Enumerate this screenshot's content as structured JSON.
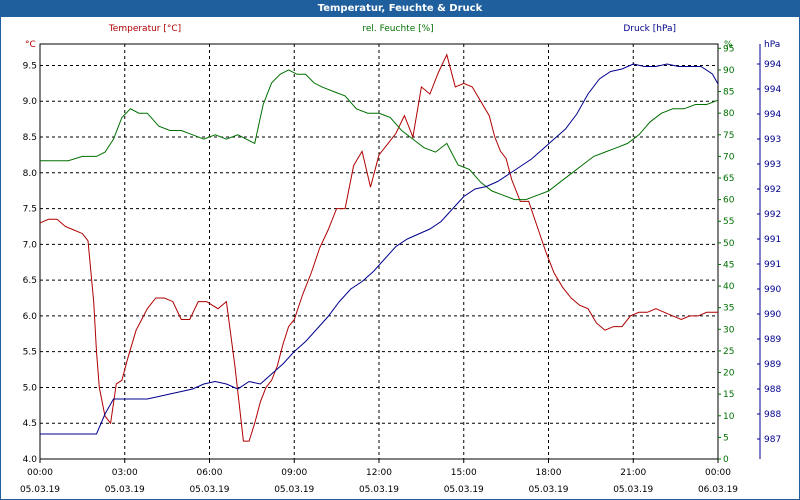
{
  "window": {
    "title": "Temperatur, Feuchte & Druck"
  },
  "chart_data": {
    "type": "line",
    "title": "Temperatur, Feuchte & Druck",
    "grid": true,
    "colors": {
      "temperature": "#b00000",
      "humidity": "#007000",
      "pressure": "#00008c",
      "title_bar": "#1f5f9e"
    },
    "x_ticks": [
      {
        "time": "00:00",
        "date": "05.03.19"
      },
      {
        "time": "03:00",
        "date": "05.03.19"
      },
      {
        "time": "06:00",
        "date": "05.03.19"
      },
      {
        "time": "09:00",
        "date": "05.03.19"
      },
      {
        "time": "12:00",
        "date": "05.03.19"
      },
      {
        "time": "15:00",
        "date": "05.03.19"
      },
      {
        "time": "18:00",
        "date": "05.03.19"
      },
      {
        "time": "21:00",
        "date": "05.03.19"
      },
      {
        "time": "00:00",
        "date": "06.03.19"
      }
    ],
    "xlim_hours": [
      0,
      24
    ],
    "axes": {
      "temperature": {
        "label": "Temperatur [°C]",
        "unit": "°C",
        "ylim": [
          4.0,
          9.8
        ],
        "ticks": [
          "4.0",
          "4.5",
          "5.0",
          "5.5",
          "6.0",
          "6.5",
          "7.0",
          "7.5",
          "8.0",
          "8.5",
          "9.0",
          "9.5"
        ]
      },
      "humidity": {
        "label": "rel. Feuchte [%]",
        "unit": "%",
        "ylim": [
          0,
          96
        ],
        "ticks": [
          "0",
          "5",
          "10",
          "15",
          "20",
          "25",
          "30",
          "35",
          "40",
          "45",
          "50",
          "55",
          "60",
          "65",
          "70",
          "75",
          "80",
          "85",
          "90",
          "95"
        ]
      },
      "pressure": {
        "label": "Druck [hPa]",
        "unit": "hPa",
        "ylim": [
          986.6,
          994.9
        ],
        "tick_values": [
          987,
          987.5,
          988,
          988.5,
          989,
          989.5,
          990,
          990.5,
          991,
          991.5,
          992,
          992.5,
          993,
          993.5,
          994,
          994.5
        ],
        "ticks": [
          "987",
          "988",
          "988",
          "989",
          "989",
          "990",
          "990",
          "991",
          "991",
          "992",
          "992",
          "993",
          "993",
          "994",
          "994",
          "994"
        ]
      }
    },
    "series": [
      {
        "name": "Temperatur [°C]",
        "axis": "temperature",
        "x": [
          0,
          0.3,
          0.6,
          0.9,
          1.2,
          1.5,
          1.7,
          1.9,
          2.0,
          2.1,
          2.3,
          2.5,
          2.7,
          2.9,
          3.1,
          3.4,
          3.6,
          3.8,
          4.1,
          4.4,
          4.7,
          5.0,
          5.3,
          5.6,
          5.9,
          6.1,
          6.3,
          6.6,
          6.9,
          7.2,
          7.4,
          7.6,
          7.8,
          8.0,
          8.2,
          8.4,
          8.6,
          8.8,
          9.0,
          9.3,
          9.6,
          9.9,
          10.2,
          10.5,
          10.8,
          11.1,
          11.4,
          11.7,
          12.0,
          12.3,
          12.6,
          12.9,
          13.2,
          13.5,
          13.8,
          14.1,
          14.4,
          14.7,
          15.0,
          15.3,
          15.6,
          15.9,
          16.1,
          16.3,
          16.5,
          16.7,
          17.0,
          17.3,
          17.6,
          17.9,
          18.2,
          18.5,
          18.8,
          19.1,
          19.4,
          19.7,
          20.0,
          20.3,
          20.6,
          20.9,
          21.2,
          21.5,
          21.8,
          22.1,
          22.4,
          22.7,
          23.0,
          23.3,
          23.6,
          23.9,
          24.0
        ],
        "values": [
          7.3,
          7.35,
          7.35,
          7.25,
          7.2,
          7.15,
          7.05,
          6.2,
          5.5,
          5.0,
          4.6,
          4.5,
          5.05,
          5.1,
          5.4,
          5.8,
          5.95,
          6.1,
          6.25,
          6.25,
          6.2,
          5.95,
          5.95,
          6.2,
          6.2,
          6.15,
          6.1,
          6.2,
          5.3,
          4.25,
          4.25,
          4.5,
          4.8,
          5.0,
          5.1,
          5.3,
          5.6,
          5.85,
          5.95,
          6.3,
          6.6,
          6.95,
          7.2,
          7.5,
          7.5,
          8.1,
          8.3,
          7.8,
          8.25,
          8.4,
          8.55,
          8.8,
          8.5,
          9.2,
          9.1,
          9.4,
          9.65,
          9.2,
          9.25,
          9.2,
          9.0,
          8.8,
          8.5,
          8.3,
          8.2,
          7.9,
          7.6,
          7.6,
          7.25,
          6.9,
          6.6,
          6.4,
          6.25,
          6.15,
          6.1,
          5.9,
          5.8,
          5.85,
          5.85,
          6.0,
          6.05,
          6.05,
          6.1,
          6.05,
          6.0,
          5.95,
          6.0,
          6.0,
          6.05,
          6.05,
          6.05
        ]
      },
      {
        "name": "rel. Feuchte [%]",
        "axis": "humidity",
        "x": [
          0,
          0.5,
          1.0,
          1.5,
          2.0,
          2.3,
          2.6,
          2.9,
          3.2,
          3.5,
          3.8,
          4.2,
          4.6,
          5.0,
          5.4,
          5.8,
          6.2,
          6.6,
          7.0,
          7.3,
          7.6,
          7.9,
          8.2,
          8.5,
          8.8,
          9.1,
          9.4,
          9.7,
          10.0,
          10.4,
          10.8,
          11.2,
          11.6,
          12.0,
          12.4,
          12.8,
          13.2,
          13.6,
          14.0,
          14.4,
          14.8,
          15.2,
          15.6,
          16.0,
          16.4,
          16.8,
          17.2,
          17.6,
          18.0,
          18.4,
          18.8,
          19.2,
          19.6,
          20.0,
          20.4,
          20.8,
          21.2,
          21.6,
          22.0,
          22.4,
          22.8,
          23.2,
          23.6,
          24.0
        ],
        "values": [
          69,
          69,
          69,
          70,
          70,
          71,
          74,
          79,
          81,
          80,
          80,
          77,
          76,
          76,
          75,
          74,
          75,
          74,
          75,
          74,
          73,
          82,
          87,
          89,
          90,
          89,
          89,
          87,
          86,
          85,
          84,
          81,
          80,
          80,
          79,
          76,
          74,
          72,
          71,
          73,
          68,
          67,
          64,
          62,
          61,
          60,
          60,
          61,
          62,
          64,
          66,
          68,
          70,
          71,
          72,
          73,
          75,
          78,
          80,
          81,
          81,
          82,
          82,
          83
        ]
      },
      {
        "name": "Druck [hPa]",
        "axis": "pressure",
        "x": [
          0,
          0.5,
          1.0,
          1.5,
          2.0,
          2.3,
          2.6,
          2.9,
          3.2,
          3.5,
          3.8,
          4.2,
          4.6,
          5.0,
          5.4,
          5.8,
          6.2,
          6.6,
          7.0,
          7.4,
          7.8,
          8.2,
          8.6,
          9.0,
          9.4,
          9.8,
          10.2,
          10.6,
          11.0,
          11.4,
          11.8,
          12.2,
          12.6,
          13.0,
          13.4,
          13.8,
          14.2,
          14.6,
          15.0,
          15.4,
          15.8,
          16.2,
          16.6,
          17.0,
          17.4,
          17.8,
          18.2,
          18.6,
          19.0,
          19.4,
          19.8,
          20.2,
          20.6,
          21.0,
          21.4,
          21.8,
          22.2,
          22.6,
          23.0,
          23.4,
          23.8,
          24.0
        ],
        "values": [
          987.1,
          987.1,
          987.1,
          987.1,
          987.1,
          987.5,
          987.8,
          987.8,
          987.8,
          987.8,
          987.8,
          987.85,
          987.9,
          987.95,
          988.0,
          988.1,
          988.15,
          988.1,
          988.0,
          988.15,
          988.1,
          988.3,
          988.5,
          988.75,
          988.95,
          989.2,
          989.45,
          989.75,
          990.0,
          990.15,
          990.35,
          990.6,
          990.85,
          991.0,
          991.1,
          991.2,
          991.35,
          991.6,
          991.85,
          992.0,
          992.05,
          992.15,
          992.3,
          992.45,
          992.6,
          992.8,
          993.0,
          993.2,
          993.5,
          993.9,
          994.2,
          994.35,
          994.4,
          994.5,
          994.45,
          994.45,
          994.5,
          994.45,
          994.45,
          994.45,
          994.3,
          994.1
        ]
      }
    ]
  }
}
